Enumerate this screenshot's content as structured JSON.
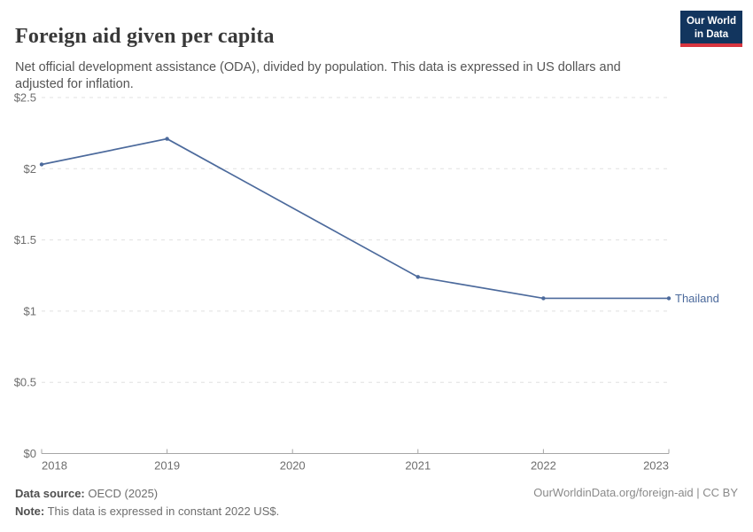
{
  "header": {
    "title": "Foreign aid given per capita",
    "subtitle": "Net official development assistance (ODA), divided by population. This data is expressed in US dollars and adjusted for inflation.",
    "logo": {
      "line1": "Our World",
      "line2": "in Data"
    }
  },
  "chart_data": {
    "type": "line",
    "title": "Foreign aid given per capita",
    "xlabel": "",
    "ylabel": "",
    "x": [
      2018,
      2019,
      2020,
      2021,
      2022,
      2023
    ],
    "series": [
      {
        "name": "Thailand",
        "color": "#4c6a9c",
        "values": [
          2.03,
          2.21,
          null,
          1.24,
          1.09,
          1.09
        ]
      }
    ],
    "ylim": [
      0,
      2.5
    ],
    "yticks": [
      {
        "value": 0,
        "label": "$0"
      },
      {
        "value": 0.5,
        "label": "$0.5"
      },
      {
        "value": 1,
        "label": "$1"
      },
      {
        "value": 1.5,
        "label": "$1.5"
      },
      {
        "value": 2,
        "label": "$2"
      },
      {
        "value": 2.5,
        "label": "$2.5"
      }
    ],
    "grid": "horizontal-dashed",
    "legend": "series-end-label"
  },
  "footer": {
    "datasource_label": "Data source:",
    "datasource_value": "OECD (2025)",
    "note_label": "Note:",
    "note_value": "This data is expressed in constant 2022 US$.",
    "link": "OurWorldinData.org/foreign-aid | CC BY"
  },
  "colors": {
    "line": "#4c6a9c",
    "grid": "#e0e0e0",
    "axis": "#a6a6a6",
    "logo_bg": "#12355e",
    "logo_stripe": "#d8353f"
  }
}
